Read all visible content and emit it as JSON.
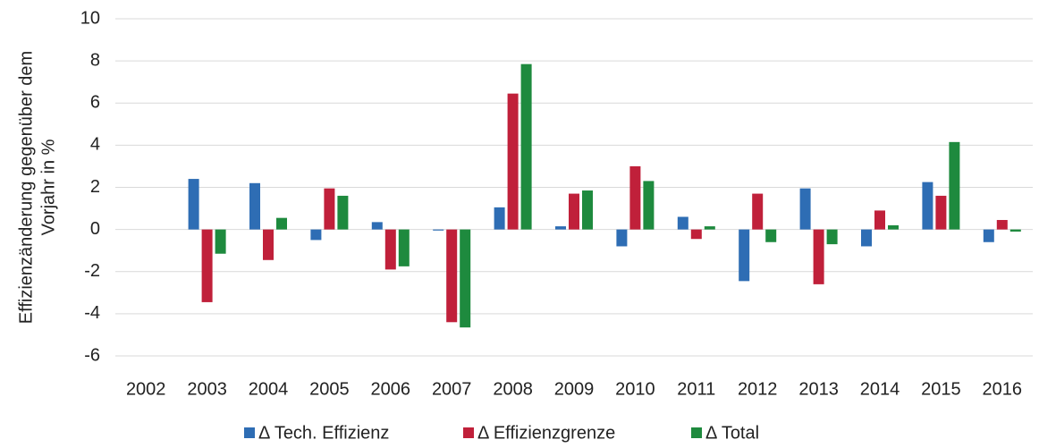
{
  "chart_data": {
    "type": "bar",
    "ylabel": [
      "Effizienzänderung gegenüber dem",
      "Vorjahr in %"
    ],
    "categories": [
      "2002",
      "2003",
      "2004",
      "2005",
      "2006",
      "2007",
      "2008",
      "2009",
      "2010",
      "2011",
      "2012",
      "2013",
      "2014",
      "2015",
      "2016"
    ],
    "series": [
      {
        "name": "Δ Tech. Effizienz",
        "color": "#2e6db4",
        "values": [
          null,
          2.4,
          2.2,
          -0.5,
          0.35,
          -0.05,
          1.05,
          0.15,
          -0.8,
          0.6,
          -2.45,
          1.95,
          -0.8,
          2.25,
          -0.6
        ]
      },
      {
        "name": "Δ Effizienzgrenze",
        "color": "#c0203a",
        "values": [
          null,
          -3.45,
          -1.45,
          1.95,
          -1.9,
          -4.4,
          6.45,
          1.7,
          3.0,
          -0.45,
          1.7,
          -2.6,
          0.9,
          1.6,
          0.45
        ]
      },
      {
        "name": "Δ Total",
        "color": "#1e8a3e",
        "values": [
          null,
          -1.15,
          0.55,
          1.6,
          -1.75,
          -4.65,
          7.85,
          1.85,
          2.3,
          0.15,
          -0.6,
          -0.7,
          0.2,
          4.15,
          -0.1
        ]
      }
    ],
    "ylim": [
      -6,
      10
    ],
    "yticks": [
      -6,
      -4,
      -2,
      0,
      2,
      4,
      6,
      8,
      10
    ],
    "grid": true,
    "legend": "bottom"
  }
}
